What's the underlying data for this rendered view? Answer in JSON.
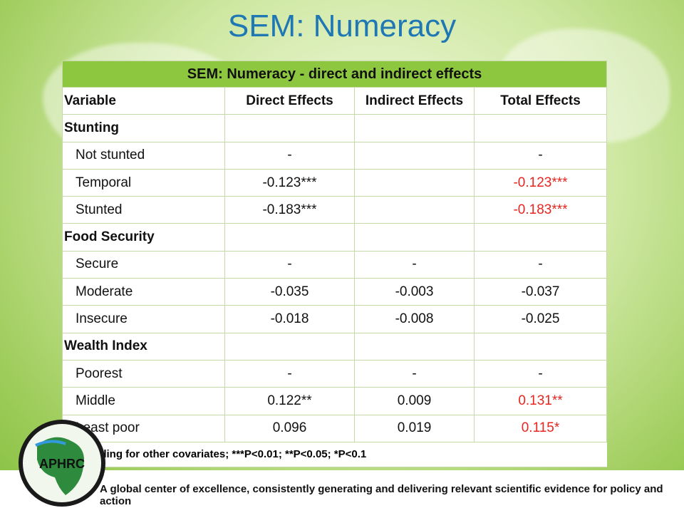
{
  "title": "SEM: Numeracy",
  "table": {
    "caption": "SEM: Numeracy - direct and indirect effects",
    "headers": [
      "Variable",
      "Direct Effects",
      "Indirect Effects",
      "Total Effects"
    ],
    "rows": [
      {
        "label": "Stunting",
        "group": true,
        "direct": "",
        "indirect": "",
        "total": "",
        "total_red": false
      },
      {
        "label": "Not stunted",
        "group": false,
        "direct": "-",
        "indirect": "",
        "total": "-",
        "total_red": false
      },
      {
        "label": "Temporal",
        "group": false,
        "direct": "-0.123***",
        "indirect": "",
        "total": "-0.123***",
        "total_red": true
      },
      {
        "label": "Stunted",
        "group": false,
        "direct": "-0.183***",
        "indirect": "",
        "total": "-0.183***",
        "total_red": true
      },
      {
        "label": "Food Security",
        "group": true,
        "direct": "",
        "indirect": "",
        "total": "",
        "total_red": false
      },
      {
        "label": "Secure",
        "group": false,
        "direct": "-",
        "indirect": "-",
        "total": "-",
        "total_red": false
      },
      {
        "label": "Moderate",
        "group": false,
        "direct": "-0.035",
        "indirect": "-0.003",
        "total": "-0.037",
        "total_red": false
      },
      {
        "label": "Insecure",
        "group": false,
        "direct": "-0.018",
        "indirect": "-0.008",
        "total": "-0.025",
        "total_red": false
      },
      {
        "label": "Wealth Index",
        "group": true,
        "direct": "",
        "indirect": "",
        "total": "",
        "total_red": false
      },
      {
        "label": "Poorest",
        "group": false,
        "direct": "-",
        "indirect": "-",
        "total": "-",
        "total_red": false
      },
      {
        "label": "Middle",
        "group": false,
        "direct": "0.122**",
        "indirect": "0.009",
        "total": "0.131**",
        "total_red": true
      },
      {
        "label": "Least poor",
        "group": false,
        "direct": "0.096",
        "indirect": "0.019",
        "total": "0.115*",
        "total_red": true
      }
    ],
    "footnote": "Controlling for other covariates; ***P<0.01; **P<0.05; *P<0.1"
  },
  "footer": {
    "logo_text": "APHRC",
    "tagline": "A global center of excellence, consistently generating and delivering relevant scientific evidence for policy and action"
  },
  "colors": {
    "title": "#1f78b4",
    "header_band": "#8dc63f",
    "highlight": "#e8251f"
  }
}
